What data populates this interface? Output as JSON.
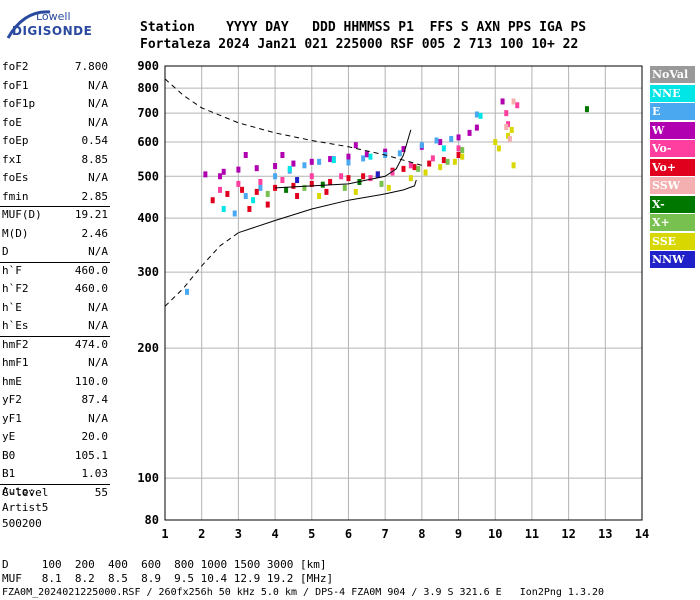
{
  "logo": {
    "top": "Lowell",
    "main": "DIGISONDE"
  },
  "header": {
    "line1": "Station    YYYY DAY   DDD HHMMSS P1  FFS S AXN PPS IGA PS",
    "line2": "Fortaleza 2024 Jan21 021 225000 RSF 005 2 713 100 10+ 22"
  },
  "params": [
    {
      "name": "foF2",
      "value": "7.800"
    },
    {
      "name": "foF1",
      "value": "N/A"
    },
    {
      "name": "foF1p",
      "value": "N/A"
    },
    {
      "name": "foE",
      "value": "N/A"
    },
    {
      "name": "foEp",
      "value": "0.54"
    },
    {
      "name": "fxI",
      "value": "8.85"
    },
    {
      "name": "foEs",
      "value": "N/A"
    },
    {
      "name": "fmin",
      "value": "2.85"
    },
    {
      "name": "MUF(D)",
      "value": "19.21"
    },
    {
      "name": "M(D)",
      "value": "2.46"
    },
    {
      "name": "D",
      "value": "N/A"
    },
    {
      "name": "h`F",
      "value": "460.0"
    },
    {
      "name": "h`F2",
      "value": "460.0"
    },
    {
      "name": "h`E",
      "value": "N/A"
    },
    {
      "name": "h`Es",
      "value": "N/A"
    },
    {
      "name": "hmF2",
      "value": "474.0"
    },
    {
      "name": "hmF1",
      "value": "N/A"
    },
    {
      "name": "hmE",
      "value": "110.0"
    },
    {
      "name": "yF2",
      "value": "87.4"
    },
    {
      "name": "yF1",
      "value": "N/A"
    },
    {
      "name": "yE",
      "value": "20.0"
    },
    {
      "name": "B0",
      "value": "105.1"
    },
    {
      "name": "B1",
      "value": "1.03"
    },
    {
      "name": "C-level",
      "value": "55"
    }
  ],
  "auto": {
    "line1": "Auto:",
    "line2": "Artist5",
    "line3": "500200"
  },
  "legend": [
    {
      "label": "NoVal",
      "color": "#999999"
    },
    {
      "label": "NNE",
      "color": "#00e6e6"
    },
    {
      "label": "E",
      "color": "#49a8f0"
    },
    {
      "label": "W",
      "color": "#b000b0"
    },
    {
      "label": "Vo-",
      "color": "#ff3f9f"
    },
    {
      "label": "Vo+",
      "color": "#e0001e"
    },
    {
      "label": "SSW",
      "color": "#f4b0b0"
    },
    {
      "label": "X-",
      "color": "#007800"
    },
    {
      "label": "X+",
      "color": "#78c050"
    },
    {
      "label": "SSE",
      "color": "#d8d800"
    },
    {
      "label": "NNW",
      "color": "#2020c8"
    }
  ],
  "footer": {
    "line1": "D     100  200  400  600  800 1000 1500 3000 [km]",
    "line2": "MUF   8.1  8.2  8.5  8.9  9.5 10.4 12.9 19.2 [MHz]",
    "line3": "FZA0M_2024021225000.RSF / 260fx256h 50 kHz 5.0 km / DPS-4 FZA0M 904 / 3.9 S 321.6 E   Ion2Png 1.3.20"
  },
  "chart_data": {
    "type": "scatter",
    "xlim": [
      1,
      14
    ],
    "ylim": [
      80,
      900
    ],
    "y_scale": "log",
    "x_ticks": [
      1,
      2,
      3,
      4,
      5,
      6,
      7,
      8,
      9,
      10,
      11,
      12,
      13,
      14
    ],
    "y_ticks": [
      80,
      100,
      200,
      300,
      400,
      500,
      600,
      700,
      800,
      900
    ],
    "grid": true,
    "lines": [
      {
        "name": "dashed-upper",
        "style": "dashed",
        "points": [
          [
            1,
            840
          ],
          [
            1.5,
            770
          ],
          [
            2,
            720
          ],
          [
            3,
            665
          ],
          [
            4,
            630
          ],
          [
            5,
            605
          ],
          [
            6,
            585
          ],
          [
            7,
            560
          ],
          [
            8,
            530
          ]
        ]
      },
      {
        "name": "dashed-lower",
        "style": "dashed",
        "points": [
          [
            1,
            250
          ],
          [
            1.5,
            275
          ],
          [
            2,
            310
          ],
          [
            2.5,
            345
          ],
          [
            3,
            370
          ]
        ]
      },
      {
        "name": "profile",
        "style": "solid",
        "points": [
          [
            3,
            370
          ],
          [
            4,
            395
          ],
          [
            5,
            420
          ],
          [
            6,
            440
          ],
          [
            7,
            455
          ],
          [
            7.5,
            465
          ],
          [
            7.8,
            475
          ],
          [
            7.85,
            490
          ]
        ]
      },
      {
        "name": "trace",
        "style": "solid",
        "points": [
          [
            4,
            470
          ],
          [
            5,
            475
          ],
          [
            6,
            480
          ],
          [
            6.5,
            490
          ],
          [
            7,
            500
          ],
          [
            7.3,
            520
          ],
          [
            7.5,
            560
          ],
          [
            7.6,
            600
          ],
          [
            7.7,
            640
          ]
        ]
      }
    ],
    "series": [
      {
        "legend": "W",
        "color": "#b000b0",
        "points": [
          [
            2.1,
            505
          ],
          [
            2.6,
            512
          ],
          [
            3,
            518
          ],
          [
            3.5,
            522
          ],
          [
            4,
            528
          ],
          [
            4.5,
            535
          ],
          [
            5,
            540
          ],
          [
            5.5,
            548
          ],
          [
            6,
            555
          ],
          [
            6.5,
            562
          ],
          [
            7,
            570
          ],
          [
            7.5,
            578
          ],
          [
            8,
            585
          ],
          [
            8.5,
            600
          ],
          [
            9,
            615
          ],
          [
            9.3,
            630
          ],
          [
            9.5,
            648
          ],
          [
            10.2,
            745
          ],
          [
            3.2,
            560
          ],
          [
            2.5,
            500
          ],
          [
            4.2,
            560
          ],
          [
            6.2,
            590
          ]
        ]
      },
      {
        "legend": "E",
        "color": "#49a8f0",
        "points": [
          [
            2.9,
            410
          ],
          [
            3.2,
            450
          ],
          [
            3.6,
            470
          ],
          [
            4,
            500
          ],
          [
            4.4,
            515
          ],
          [
            4.8,
            530
          ],
          [
            5.2,
            540
          ],
          [
            5.6,
            548
          ],
          [
            6,
            538
          ],
          [
            6.4,
            550
          ],
          [
            7,
            560
          ],
          [
            7.4,
            565
          ],
          [
            8,
            590
          ],
          [
            8.4,
            605
          ],
          [
            8.8,
            610
          ],
          [
            9.5,
            695
          ],
          [
            1.6,
            270
          ]
        ]
      },
      {
        "legend": "Vo+",
        "color": "#e0001e",
        "points": [
          [
            2.3,
            440
          ],
          [
            2.7,
            455
          ],
          [
            3.1,
            465
          ],
          [
            3.5,
            460
          ],
          [
            4,
            470
          ],
          [
            4.5,
            475
          ],
          [
            5,
            480
          ],
          [
            5.5,
            485
          ],
          [
            6,
            495
          ],
          [
            6.4,
            500
          ],
          [
            6.8,
            505
          ],
          [
            7.2,
            515
          ],
          [
            7.5,
            520
          ],
          [
            7.8,
            525
          ],
          [
            8.2,
            535
          ],
          [
            8.6,
            545
          ],
          [
            9,
            560
          ],
          [
            3.3,
            420
          ],
          [
            3.8,
            430
          ],
          [
            4.6,
            450
          ],
          [
            5.4,
            460
          ]
        ]
      },
      {
        "legend": "Vo-",
        "color": "#ff3f9f",
        "points": [
          [
            2.5,
            465
          ],
          [
            3,
            480
          ],
          [
            3.6,
            485
          ],
          [
            4.2,
            490
          ],
          [
            5,
            500
          ],
          [
            5.8,
            500
          ],
          [
            6.6,
            495
          ],
          [
            7.2,
            510
          ],
          [
            7.7,
            530
          ],
          [
            8.3,
            550
          ],
          [
            9,
            580
          ],
          [
            10.3,
            700
          ],
          [
            10.35,
            660
          ],
          [
            10.6,
            730
          ]
        ]
      },
      {
        "legend": "NNE",
        "color": "#00e6e6",
        "points": [
          [
            2.6,
            420
          ],
          [
            3.4,
            440
          ],
          [
            4.4,
            520
          ],
          [
            5.6,
            545
          ],
          [
            6.6,
            555
          ],
          [
            8.6,
            580
          ],
          [
            9.6,
            690
          ]
        ]
      },
      {
        "legend": "X+",
        "color": "#78c050",
        "points": [
          [
            3.8,
            455
          ],
          [
            4.8,
            470
          ],
          [
            5.9,
            470
          ],
          [
            6.9,
            480
          ],
          [
            7.9,
            520
          ],
          [
            8.7,
            540
          ],
          [
            9.1,
            575
          ]
        ]
      },
      {
        "legend": "SSE",
        "color": "#d8d800",
        "points": [
          [
            5.2,
            450
          ],
          [
            6.2,
            460
          ],
          [
            7.1,
            470
          ],
          [
            7.7,
            495
          ],
          [
            8.1,
            510
          ],
          [
            8.5,
            525
          ],
          [
            8.9,
            540
          ],
          [
            9.1,
            555
          ],
          [
            10,
            600
          ],
          [
            10.1,
            580
          ],
          [
            10.35,
            620
          ],
          [
            10.45,
            640
          ],
          [
            10.5,
            530
          ]
        ]
      },
      {
        "legend": "X-",
        "color": "#007800",
        "points": [
          [
            4.3,
            465
          ],
          [
            5.3,
            478
          ],
          [
            6.3,
            485
          ],
          [
            12.5,
            715
          ]
        ]
      },
      {
        "legend": "SSW",
        "color": "#f4b0b0",
        "points": [
          [
            10.5,
            745
          ],
          [
            10.3,
            650
          ],
          [
            10.4,
            610
          ]
        ]
      },
      {
        "legend": "NNW",
        "color": "#2020c8",
        "points": [
          [
            4.6,
            490
          ],
          [
            6.8,
            505
          ]
        ]
      }
    ]
  }
}
